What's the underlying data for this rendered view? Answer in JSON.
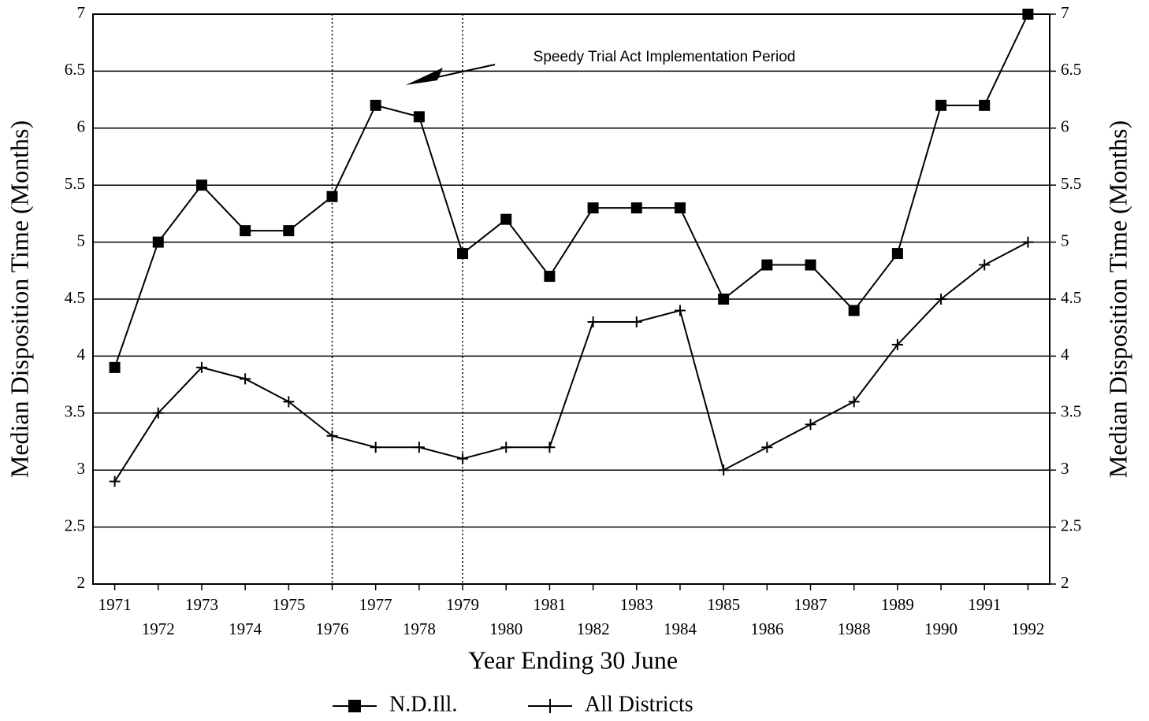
{
  "chart_data": {
    "type": "line",
    "categories": [
      "1971",
      "1972",
      "1973",
      "1974",
      "1975",
      "1976",
      "1977",
      "1978",
      "1979",
      "1980",
      "1981",
      "1982",
      "1983",
      "1984",
      "1985",
      "1986",
      "1987",
      "1988",
      "1989",
      "1990",
      "1991",
      "1992"
    ],
    "series": [
      {
        "name": "N.D.Ill.",
        "color": "#000000",
        "marker": "square",
        "values": [
          3.9,
          5.0,
          5.5,
          5.1,
          5.1,
          5.4,
          6.2,
          6.1,
          4.9,
          5.2,
          4.7,
          5.3,
          5.3,
          5.3,
          4.5,
          4.8,
          4.8,
          4.4,
          4.9,
          6.2,
          6.2,
          7.0
        ]
      },
      {
        "name": "All Districts",
        "color": "#000000",
        "marker": "plus",
        "values": [
          2.9,
          3.5,
          3.9,
          3.8,
          3.6,
          3.3,
          3.2,
          3.2,
          3.1,
          3.2,
          3.2,
          4.3,
          4.3,
          4.4,
          3.0,
          3.2,
          3.4,
          3.6,
          4.1,
          4.5,
          4.8,
          5.0
        ]
      }
    ],
    "xlabel": "Year Ending 30 June",
    "ylabel": "Median Disposition Time (Months)",
    "y2label": "Median Disposition Time (Months)",
    "ylim": [
      2,
      7
    ],
    "yticks": [
      2,
      2.5,
      3,
      3.5,
      4,
      4.5,
      5,
      5.5,
      6,
      6.5,
      7
    ],
    "y2lim": [
      2,
      7
    ],
    "y2ticks": [
      2,
      2.5,
      3,
      3.5,
      4,
      4.5,
      5,
      5.5,
      6,
      6.5,
      7
    ],
    "grid": true,
    "annotation": {
      "text": "Speedy Trial Act Implementation Period",
      "from": "1976",
      "to": "1979"
    },
    "legend": "bottom"
  }
}
